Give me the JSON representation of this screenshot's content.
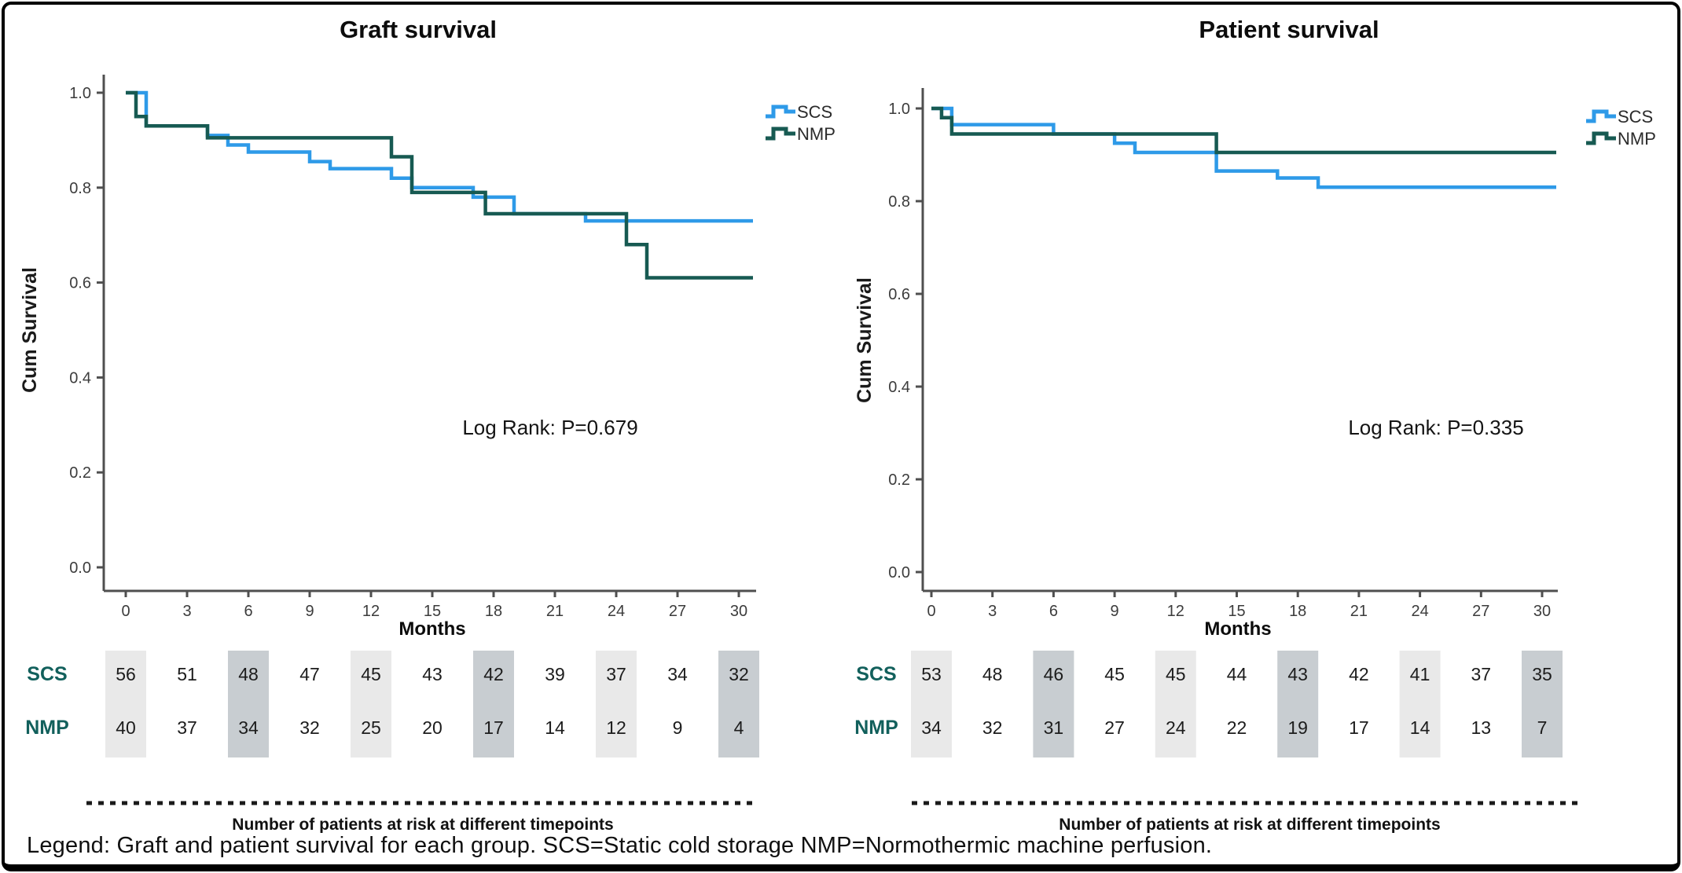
{
  "figure": {
    "caption": "Legend: Graft and patient survival for each group. SCS=Static cold storage NMP=Normothermic machine perfusion."
  },
  "colors": {
    "scs_blue": "#2e9ae8",
    "nmp_green": "#175a52",
    "axis_gray": "#4f4f4f",
    "shade_light": "#e9e9e9",
    "shade_dark": "#c8cdd1",
    "risk_label_teal": "#12605c"
  },
  "panels": [
    {
      "title": "Graft survival",
      "ylabel": "Cum Survival",
      "xlabel": "Months",
      "log_rank": "Log Rank: P=0.679",
      "legend": [
        {
          "label": "SCS"
        },
        {
          "label": "NMP"
        }
      ],
      "risk_caption": "Number of patients at risk at different timepoints",
      "risk_rows": [
        {
          "label": "SCS"
        },
        {
          "label": "NMP"
        }
      ]
    },
    {
      "title": "Patient survival",
      "ylabel": "Cum Survival",
      "xlabel": "Months",
      "log_rank": "Log Rank: P=0.335",
      "legend": [
        {
          "label": "SCS"
        },
        {
          "label": "NMP"
        }
      ],
      "risk_caption": "Number of patients at risk at different timepoints",
      "risk_rows": [
        {
          "label": "SCS"
        },
        {
          "label": "NMP"
        }
      ]
    }
  ],
  "chart_data": [
    {
      "type": "line",
      "subtype": "kaplan-meier-step",
      "title": "Graft survival",
      "xlabel": "Months",
      "ylabel": "Cum Survival",
      "x_ticks": [
        0,
        3,
        6,
        9,
        12,
        15,
        18,
        21,
        24,
        27,
        30
      ],
      "y_ticks": [
        1.0,
        0.8,
        0.6,
        0.4,
        0.2,
        0.0
      ],
      "xlim": [
        0,
        31
      ],
      "ylim": [
        0.0,
        1.05
      ],
      "grid": false,
      "legend_position": "top-right",
      "log_rank_label": "Log Rank: P=0.679",
      "series": [
        {
          "name": "SCS",
          "color": "#2e9ae8",
          "steps": [
            [
              0,
              1.0
            ],
            [
              1,
              0.93
            ],
            [
              4,
              0.91
            ],
            [
              5,
              0.89
            ],
            [
              6,
              0.875
            ],
            [
              9,
              0.855
            ],
            [
              10,
              0.84
            ],
            [
              13,
              0.82
            ],
            [
              14,
              0.8
            ],
            [
              17,
              0.78
            ],
            [
              19,
              0.745
            ],
            [
              22.5,
              0.73
            ]
          ],
          "end_time": 30
        },
        {
          "name": "NMP",
          "color": "#175a52",
          "steps": [
            [
              0,
              1.0
            ],
            [
              0.5,
              0.95
            ],
            [
              1,
              0.93
            ],
            [
              4,
              0.905
            ],
            [
              13,
              0.865
            ],
            [
              14,
              0.79
            ],
            [
              17.6,
              0.745
            ],
            [
              24.5,
              0.68
            ],
            [
              25.5,
              0.61
            ]
          ],
          "end_time": 30
        }
      ],
      "at_risk": {
        "times": [
          0,
          3,
          6,
          9,
          12,
          15,
          18,
          21,
          24,
          27,
          30
        ],
        "rows": [
          {
            "name": "SCS",
            "values": [
              56,
              51,
              48,
              47,
              45,
              43,
              42,
              39,
              37,
              34,
              32
            ]
          },
          {
            "name": "NMP",
            "values": [
              40,
              37,
              34,
              32,
              25,
              20,
              17,
              14,
              12,
              9,
              4
            ]
          }
        ]
      }
    },
    {
      "type": "line",
      "subtype": "kaplan-meier-step",
      "title": "Patient survival",
      "xlabel": "Months",
      "ylabel": "Cum Survival",
      "x_ticks": [
        0,
        3,
        6,
        9,
        12,
        15,
        18,
        21,
        24,
        27,
        30
      ],
      "y_ticks": [
        1.0,
        0.8,
        0.6,
        0.4,
        0.2,
        0.0
      ],
      "xlim": [
        0,
        31
      ],
      "ylim": [
        0.0,
        1.05
      ],
      "grid": false,
      "legend_position": "top-right",
      "log_rank_label": "Log Rank: P=0.335",
      "series": [
        {
          "name": "SCS",
          "color": "#2e9ae8",
          "steps": [
            [
              0,
              1.0
            ],
            [
              1,
              0.965
            ],
            [
              6,
              0.945
            ],
            [
              9,
              0.925
            ],
            [
              10,
              0.905
            ],
            [
              14,
              0.865
            ],
            [
              17,
              0.85
            ],
            [
              19,
              0.83
            ]
          ],
          "end_time": 30
        },
        {
          "name": "NMP",
          "color": "#175a52",
          "steps": [
            [
              0,
              1.0
            ],
            [
              0.5,
              0.98
            ],
            [
              1,
              0.945
            ],
            [
              14,
              0.905
            ]
          ],
          "end_time": 30
        }
      ],
      "at_risk": {
        "times": [
          0,
          3,
          6,
          9,
          12,
          15,
          18,
          21,
          24,
          27,
          30
        ],
        "rows": [
          {
            "name": "SCS",
            "values": [
              53,
              48,
              46,
              45,
              45,
              44,
              43,
              42,
              41,
              37,
              35
            ]
          },
          {
            "name": "NMP",
            "values": [
              34,
              32,
              31,
              27,
              24,
              22,
              19,
              17,
              14,
              13,
              7
            ]
          }
        ]
      }
    }
  ]
}
